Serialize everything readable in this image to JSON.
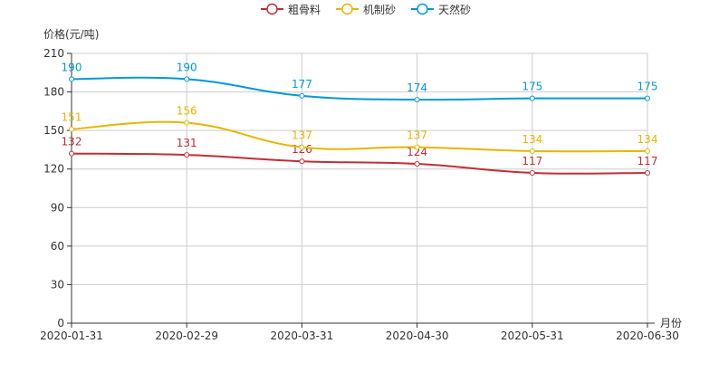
{
  "chart_data": {
    "type": "line",
    "smooth": true,
    "categories": [
      "2020-01-31",
      "2020-02-29",
      "2020-03-31",
      "2020-04-30",
      "2020-05-31",
      "2020-06-30"
    ],
    "series": [
      {
        "name": "粗骨料",
        "color": "#c12e34",
        "values": [
          132,
          131,
          126,
          124,
          117,
          117
        ]
      },
      {
        "name": "机制砂",
        "color": "#e6b600",
        "values": [
          151,
          156,
          137,
          137,
          134,
          134
        ]
      },
      {
        "name": "天然砂",
        "color": "#0098d9",
        "values": [
          190,
          190,
          177,
          174,
          175,
          175
        ]
      }
    ],
    "ylabel": "价格(元/吨)",
    "xlabel": "月份",
    "ylim": [
      0,
      210
    ],
    "yticks": [
      0,
      30,
      60,
      90,
      120,
      150,
      180,
      210
    ],
    "grid": true,
    "legend": "top-center",
    "data_labels": true
  }
}
